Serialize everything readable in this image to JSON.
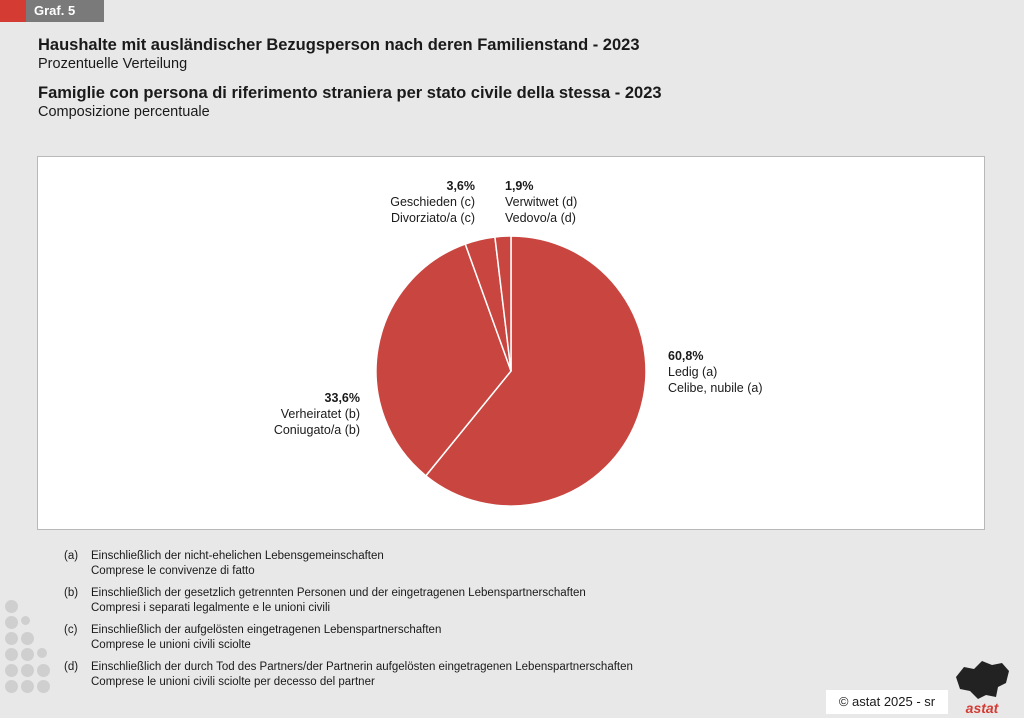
{
  "badge": {
    "label": "Graf. 5",
    "accent": "#d33b33",
    "badge_bg": "#7a7a7a"
  },
  "titles": {
    "de_title": "Haushalte mit ausländischer Bezugsperson nach deren Familienstand - 2023",
    "de_subtitle": "Prozentuelle Verteilung",
    "it_title": "Famiglie con persona di riferimento straniera per stato civile della stessa - 2023",
    "it_subtitle": "Composizione percentuale"
  },
  "chart_data": {
    "type": "pie",
    "start": "top",
    "direction": "clockwise",
    "slice_color": "#c9453f",
    "slices": [
      {
        "key": "ledig",
        "value": 60.8,
        "pct_label": "60,8%",
        "label_de": "Ledig (a)",
        "label_it": "Celibe, nubile (a)"
      },
      {
        "key": "verheiratet",
        "value": 33.6,
        "pct_label": "33,6%",
        "label_de": "Verheiratet (b)",
        "label_it": "Coniugato/a (b)"
      },
      {
        "key": "geschieden",
        "value": 3.6,
        "pct_label": "3,6%",
        "label_de": "Geschieden (c)",
        "label_it": "Divorziato/a (c)"
      },
      {
        "key": "verwitwet",
        "value": 1.9,
        "pct_label": "1,9%",
        "label_de": "Verwitwet (d)",
        "label_it": "Vedovo/a (d)"
      }
    ]
  },
  "footnotes": [
    {
      "key": "(a)",
      "de": "Einschließlich der nicht-ehelichen Lebensgemeinschaften",
      "it": "Comprese le convivenze di fatto"
    },
    {
      "key": "(b)",
      "de": "Einschließlich der gesetzlich getrennten Personen und der eingetragenen Lebenspartnerschaften",
      "it": "Compresi i separati legalmente e le unioni civili"
    },
    {
      "key": "(c)",
      "de": "Einschließlich der aufgelösten eingetragenen Lebenspartnerschaften",
      "it": "Comprese le unioni civili sciolte"
    },
    {
      "key": "(d)",
      "de": "Einschließlich der durch Tod des Partners/der Partnerin aufgelösten eingetragenen Lebenspartnerschaften",
      "it": "Comprese le unioni civili sciolte per decesso del partner"
    }
  ],
  "credit": {
    "text": "© astat 2025 - sr"
  },
  "logo": {
    "text": "astat"
  }
}
